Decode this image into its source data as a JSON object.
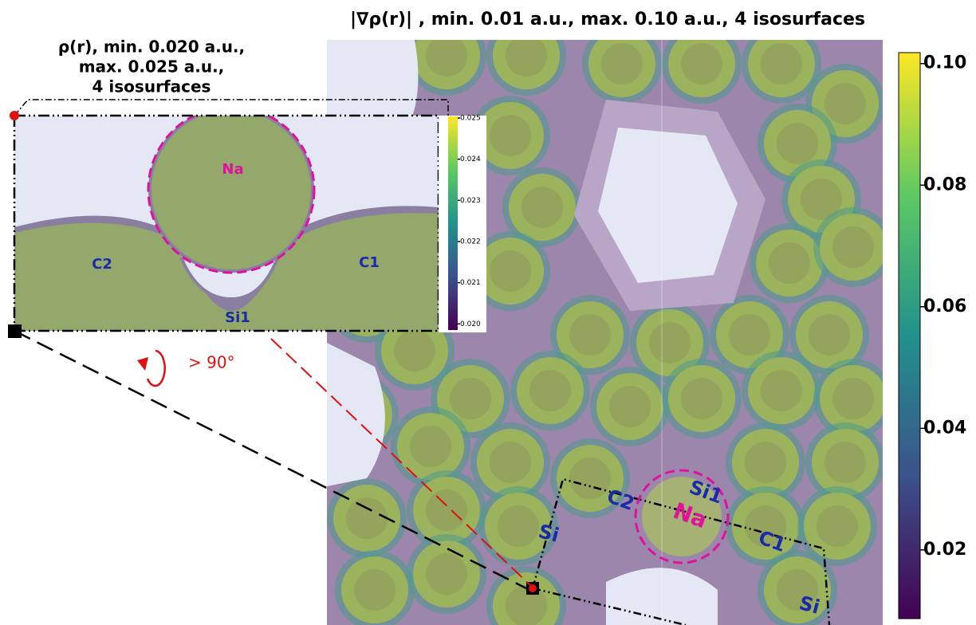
{
  "figure": {
    "main": {
      "title": "|∇ρ(r)| , min. 0.01 a.u., max. 0.10 a.u., 4 isosurfaces",
      "labels": [
        "Si1",
        "C2",
        "Na",
        "C1",
        "Si",
        "Si"
      ],
      "colorbar": {
        "lim": [
          0.0087,
          0.1018
        ],
        "ticks": [
          {
            "value": 0.1,
            "label": "0.10"
          },
          0.08,
          0.06,
          0.04,
          0.02
        ]
      }
    },
    "inset": {
      "title": [
        "ρ(r), min. 0.020 a.u.,",
        "max. 0.025 a.u.,",
        "4 isosurfaces"
      ],
      "labels": [
        "Na",
        "C2",
        "C1",
        "Si1"
      ],
      "colorbar": {
        "lim": [
          0.01985,
          0.02504
        ],
        "ticks": [
          0.025,
          0.024,
          0.023,
          0.022,
          0.021,
          {
            "value": 0.02,
            "label": "0.020"
          }
        ]
      }
    },
    "rotation": "> 90°"
  }
}
